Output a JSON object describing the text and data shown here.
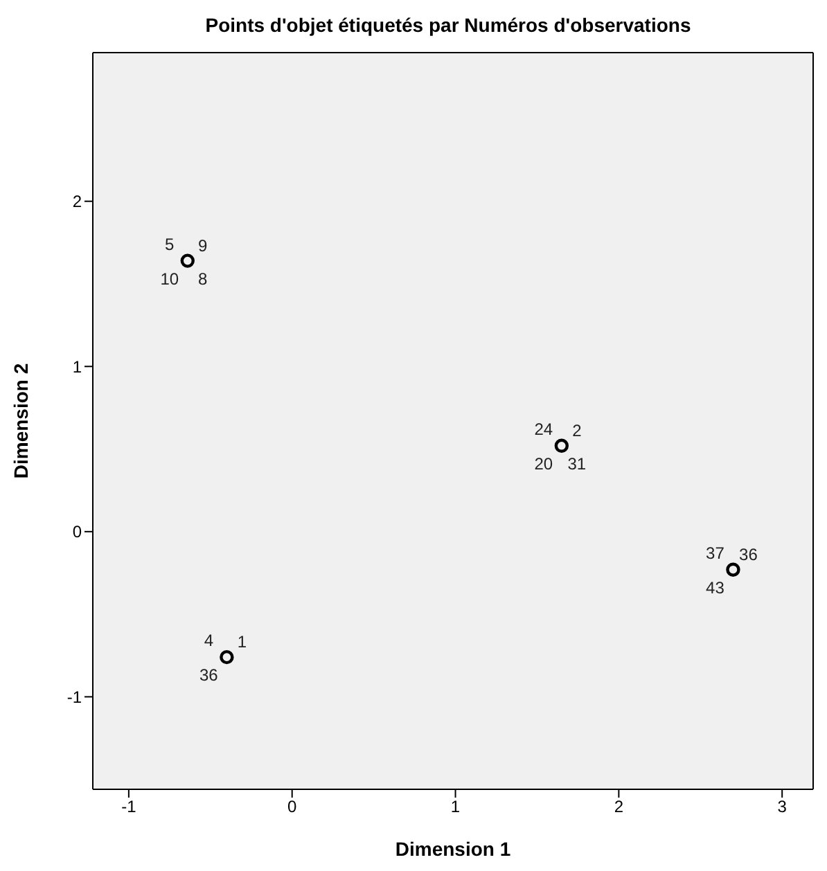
{
  "chart_data": {
    "type": "scatter",
    "title": "Points d'objet étiquetés par Numéros d'observations",
    "xlabel": "Dimension 1",
    "ylabel": "Dimension 2",
    "x": [
      -0.64,
      1.65,
      2.7,
      -0.4
    ],
    "series": [
      {
        "color": "#000000",
        "values": [
          1.64,
          0.52,
          -0.23,
          -0.76
        ]
      }
    ],
    "xlim": [
      -1.22,
      3.19
    ],
    "ylim": [
      -1.56,
      2.9
    ],
    "xticks": [
      -1,
      0,
      1,
      2,
      3
    ],
    "yticks": [
      -1,
      0,
      1,
      2
    ],
    "marker": "circle",
    "annotations": [
      {
        "text": "5",
        "x": -0.64,
        "y": 1.64
      },
      {
        "text": "9",
        "x": -0.64,
        "y": 1.64
      },
      {
        "text": "10",
        "x": -0.64,
        "y": 1.64
      },
      {
        "text": "8",
        "x": -0.64,
        "y": 1.64
      },
      {
        "text": "24",
        "x": 1.65,
        "y": 0.52
      },
      {
        "text": "2",
        "x": 1.65,
        "y": 0.52
      },
      {
        "text": "20",
        "x": 1.65,
        "y": 0.52
      },
      {
        "text": "31",
        "x": 1.65,
        "y": 0.52
      },
      {
        "text": "37",
        "x": 2.7,
        "y": -0.23
      },
      {
        "text": "36",
        "x": 2.7,
        "y": -0.23
      },
      {
        "text": "43",
        "x": 2.7,
        "y": -0.23
      },
      {
        "text": "4",
        "x": -0.4,
        "y": -0.76
      },
      {
        "text": "1",
        "x": -0.4,
        "y": -0.76
      },
      {
        "text": "36",
        "x": -0.4,
        "y": -0.76
      }
    ]
  }
}
